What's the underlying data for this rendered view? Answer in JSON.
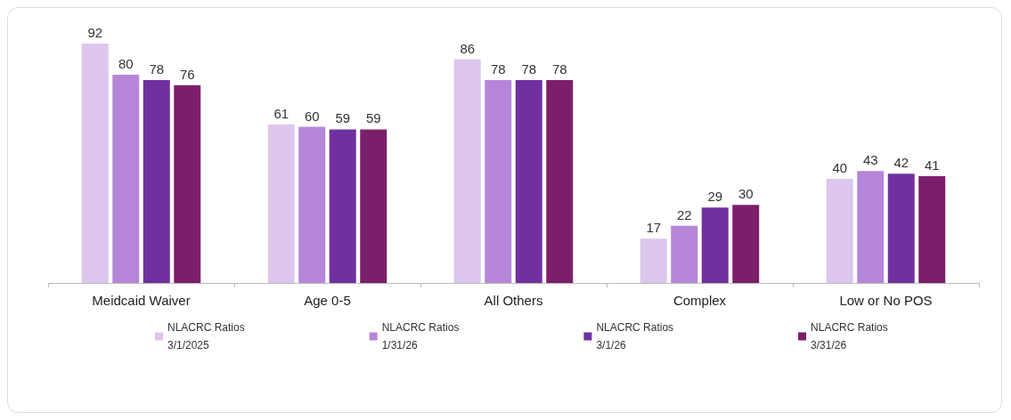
{
  "chart_data": {
    "type": "bar",
    "categories": [
      "Meidcaid Waiver",
      "Age 0-5",
      "All Others",
      "Complex",
      "Low or No POS"
    ],
    "series": [
      {
        "name": "NLACRC Ratios\n3/1/2025",
        "color": "#dcc6ec",
        "values": [
          92,
          61,
          86,
          17,
          40
        ]
      },
      {
        "name": "NLACRC Ratios\n1/31/26",
        "color": "#b586d8",
        "values": [
          80,
          60,
          78,
          22,
          43
        ]
      },
      {
        "name": "NLACRC Ratios\n3/1/26",
        "color": "#7030a0",
        "values": [
          78,
          59,
          78,
          29,
          42
        ]
      },
      {
        "name": "NLACRC Ratios\n3/31/26",
        "color": "#7b1f6a",
        "values": [
          76,
          59,
          78,
          30,
          41
        ]
      }
    ],
    "data_labels": true,
    "legend": "bottom"
  }
}
